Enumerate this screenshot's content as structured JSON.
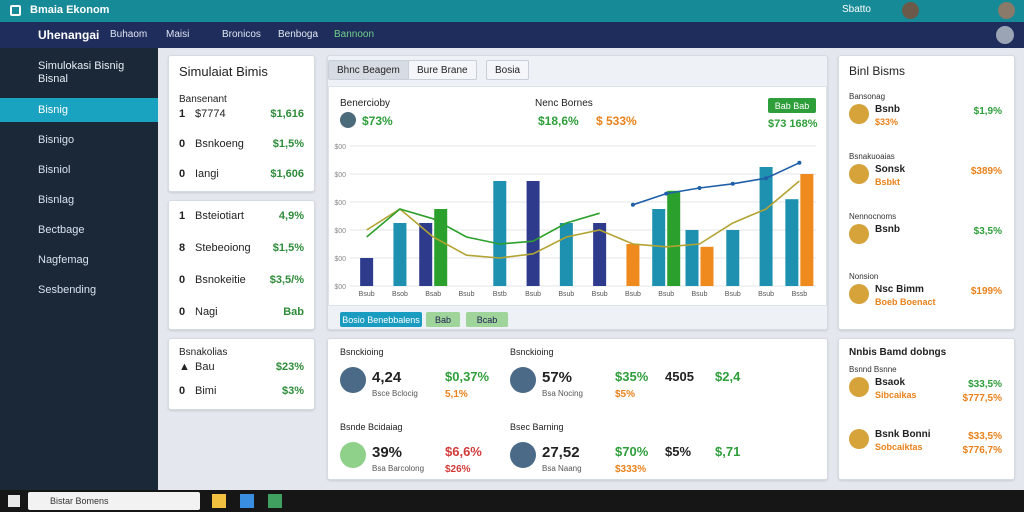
{
  "title_bar": {
    "app": "Bmaia Ekonom",
    "user": "Sbatto"
  },
  "nav": {
    "brand": "Uhenangai",
    "items": [
      "Buhaom",
      "Maisi",
      "Bronicos",
      "Benboga",
      "Bannoon"
    ]
  },
  "sidebar": {
    "title": "Simulokasi Bisnig Bisnal",
    "items": [
      "Bisnig",
      "Bisnigo",
      "Bisniol",
      "Bisnlag",
      "Bectbage",
      "Nagfemag",
      "Sesbending"
    ]
  },
  "card1": {
    "title": "Simulaiat Bimis",
    "label": "Bansenant",
    "rows": [
      {
        "n": "1",
        "label": "$7774",
        "value": "$1,616"
      },
      {
        "n": "0",
        "label": "Bsnkoeng",
        "value": "$1,5%"
      },
      {
        "n": "0",
        "label": "Iangi",
        "value": "$1,606"
      }
    ]
  },
  "card2": {
    "rows": [
      {
        "n": "1",
        "label": "Bsteiotiart",
        "value": "4,9%"
      },
      {
        "n": "8",
        "label": "Stebeoiong",
        "value": "$1,5%"
      },
      {
        "n": "0",
        "label": "Bsnokeitie",
        "value": "$3,5/%"
      },
      {
        "n": "0",
        "label": "Nagi",
        "value": "Bab"
      }
    ]
  },
  "card3": {
    "title": "Bsnakolias",
    "rows": [
      {
        "n": "▲",
        "label": "Bau",
        "value": "$23%"
      },
      {
        "n": "0",
        "label": "Bimi",
        "value": "$3%"
      }
    ]
  },
  "tabs": [
    "Bhnc Beagem",
    "Bure Brane",
    "Bosia"
  ],
  "stats": [
    {
      "label": "Benercioby",
      "value": "$73%"
    },
    {
      "label": "Nenc Bornes",
      "value": "$18,6%",
      "value2": "$ 533%"
    }
  ],
  "button": "Bab Bab",
  "total": "$73 168%",
  "chart": {
    "categories": [
      "Bsub",
      "Bsob",
      "Bsab",
      "Bsub",
      "Bstb",
      "Bsub",
      "Bsub",
      "Bsub",
      "Bsub",
      "Bsub",
      "Bsub",
      "Bsub",
      "Bsub",
      "Bssb"
    ],
    "ylim": [
      0,
      100
    ],
    "yticks": [
      {
        "value": 0,
        "label": "$00"
      },
      {
        "value": 20,
        "label": "$00"
      },
      {
        "value": 40,
        "label": "$00"
      },
      {
        "value": 60,
        "label": "$00"
      },
      {
        "value": 80,
        "label": "$00"
      },
      {
        "value": 100,
        "label": "$00"
      }
    ],
    "bars": [
      {
        "color": "#2e3a8c",
        "values": [
          20,
          null,
          45,
          null,
          null,
          75,
          null,
          45,
          null,
          null,
          null,
          null,
          null,
          null
        ]
      },
      {
        "color": "#1e90b0",
        "values": [
          null,
          45,
          null,
          null,
          75,
          null,
          45,
          null,
          null,
          55,
          40,
          40,
          85,
          62
        ]
      },
      {
        "color": "#2ca02c",
        "values": [
          null,
          null,
          55,
          null,
          null,
          null,
          null,
          null,
          null,
          68,
          null,
          null,
          null,
          null
        ]
      },
      {
        "color": "#ef8a1e",
        "values": [
          null,
          null,
          null,
          null,
          null,
          null,
          null,
          null,
          30,
          null,
          28,
          null,
          null,
          80
        ]
      }
    ],
    "lines": [
      {
        "color": "#1f5fa8",
        "values": [
          null,
          null,
          null,
          null,
          null,
          null,
          null,
          null,
          58,
          66,
          70,
          73,
          77,
          88
        ]
      },
      {
        "color": "#b3a332",
        "values": [
          40,
          55,
          35,
          22,
          20,
          23,
          35,
          40,
          30,
          28,
          30,
          45,
          55,
          75
        ]
      },
      {
        "color": "#2ca02c",
        "values": [
          35,
          55,
          48,
          35,
          30,
          32,
          45,
          52,
          null,
          null,
          null,
          null,
          null,
          null
        ]
      }
    ],
    "legend": [
      "Bosio Benebbalens",
      "Bab",
      "Bcab"
    ]
  },
  "tiles": [
    {
      "title": "Bsnckioing",
      "main": "4,24",
      "sub": "Bsce Bclocig",
      "a": "$0,37%",
      "b": "5,1%"
    },
    {
      "title": "Bsnckioing",
      "main": "57%",
      "sub": "Bsa Nocing",
      "a": "$35%",
      "b": "$5%",
      "c": "4505",
      "d": "$2,4"
    },
    {
      "title": "Bsnde Bcidaiag",
      "main": "39%",
      "sub": "Bsa Barcolong",
      "a": "$6,6%",
      "b": "$26%"
    },
    {
      "title": "Bsec Barning",
      "main": "27,52",
      "sub": "Bsa Naang",
      "a": "$70%",
      "b": "$333%",
      "c": "$5%",
      "d": "$,71"
    }
  ],
  "right_top": {
    "title": "Binl Bisms",
    "rows": [
      {
        "head": "Bansonag",
        "label": "Bsnb",
        "sub": "$33%",
        "value": "$1,9%"
      },
      {
        "head": "Bsnakuoaias",
        "label": "Sonsk",
        "sub": "Bsbkt",
        "value": "$389%"
      },
      {
        "head": "Nennocnoms",
        "label": "Bsnb",
        "value": "$3,5%"
      },
      {
        "head": "Nonsion",
        "label": "Nsc Bimm",
        "sub": "Boeb Boenact",
        "value": "$199%"
      }
    ]
  },
  "right_bottom": {
    "title": "Nnbis Bamd dobngs",
    "rows": [
      {
        "head": "Bsnnd Bsnne",
        "label": "Bsaok",
        "sub": "Sibcaikas",
        "value": "$33,5%",
        "value2": "$777,5%"
      },
      {
        "label": "Bsnk Bonni",
        "sub": "Sobcaiktas",
        "value": "$33,5%",
        "value2": "$776,7%"
      }
    ]
  },
  "taskbar": {
    "search": "Bistar Bomens"
  }
}
